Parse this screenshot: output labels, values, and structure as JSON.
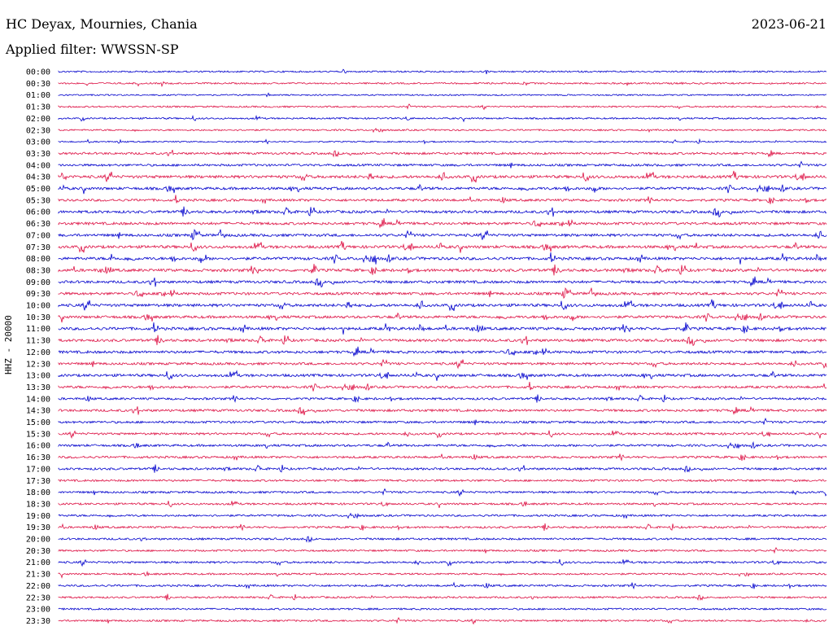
{
  "header": {
    "station": "HC Deyax, Mournies, Chania",
    "filter": "Applied filter: WWSSN-SP",
    "date": "2023-06-21"
  },
  "chart_data": {
    "type": "line",
    "title": "HC Deyax, Mournies, Chania",
    "subtitle": "Applied filter: WWSSN-SP",
    "ylabel": "HHZ - 20000",
    "xlabel": "",
    "date": "2023-06-21",
    "row_labels": [
      "00:00",
      "00:30",
      "01:00",
      "01:30",
      "02:00",
      "02:30",
      "03:00",
      "03:30",
      "04:00",
      "04:30",
      "05:00",
      "05:30",
      "06:00",
      "06:30",
      "07:00",
      "07:30",
      "08:00",
      "08:30",
      "09:00",
      "09:30",
      "10:00",
      "10:30",
      "11:00",
      "11:30",
      "12:00",
      "12:30",
      "13:00",
      "13:30",
      "14:00",
      "14:30",
      "15:00",
      "15:30",
      "16:00",
      "16:30",
      "17:00",
      "17:30",
      "18:00",
      "18:30",
      "19:00",
      "19:30",
      "20:00",
      "20:30",
      "21:00",
      "21:30",
      "22:00",
      "22:30",
      "23:00",
      "23:30"
    ],
    "series_colors": [
      "#0000cc",
      "#dd1144"
    ],
    "activity": [
      0.3,
      0.3,
      0.2,
      0.3,
      0.3,
      0.3,
      0.2,
      0.6,
      0.6,
      0.9,
      0.8,
      0.7,
      0.8,
      0.8,
      0.8,
      0.9,
      0.9,
      0.9,
      0.8,
      0.8,
      0.9,
      0.8,
      0.9,
      0.8,
      0.8,
      0.7,
      0.8,
      0.7,
      0.6,
      0.7,
      0.6,
      0.6,
      0.6,
      0.6,
      0.6,
      0.5,
      0.5,
      0.5,
      0.5,
      0.5,
      0.5,
      0.4,
      0.5,
      0.4,
      0.5,
      0.4,
      0.4,
      0.4
    ]
  }
}
